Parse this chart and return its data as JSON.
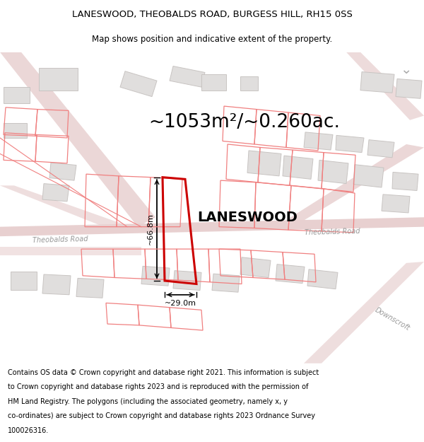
{
  "title": "LANESWOOD, THEOBALDS ROAD, BURGESS HILL, RH15 0SS",
  "subtitle": "Map shows position and indicative extent of the property.",
  "area_text": "~1053m²/~0.260ac.",
  "property_label": "LANESWOOD",
  "dim1_label": "~66.8m",
  "dim2_label": "~29.0m",
  "road_label1": "Theobalds Road",
  "road_label2": "Theobalds Road",
  "road_label3": "Downscroft",
  "footer_lines": [
    "Contains OS data © Crown copyright and database right 2021. This information is subject",
    "to Crown copyright and database rights 2023 and is reproduced with the permission of",
    "HM Land Registry. The polygons (including the associated geometry, namely x, y",
    "co-ordinates) are subject to Crown copyright and database rights 2023 Ordnance Survey",
    "100026316."
  ],
  "map_bg": "#f7f4f2",
  "road_color": "#e8d0d0",
  "prop_color": "#cc0000",
  "outline_color": "#f08080",
  "bldg_fill": "#e0dedd",
  "bldg_stroke": "#c8c4c2"
}
